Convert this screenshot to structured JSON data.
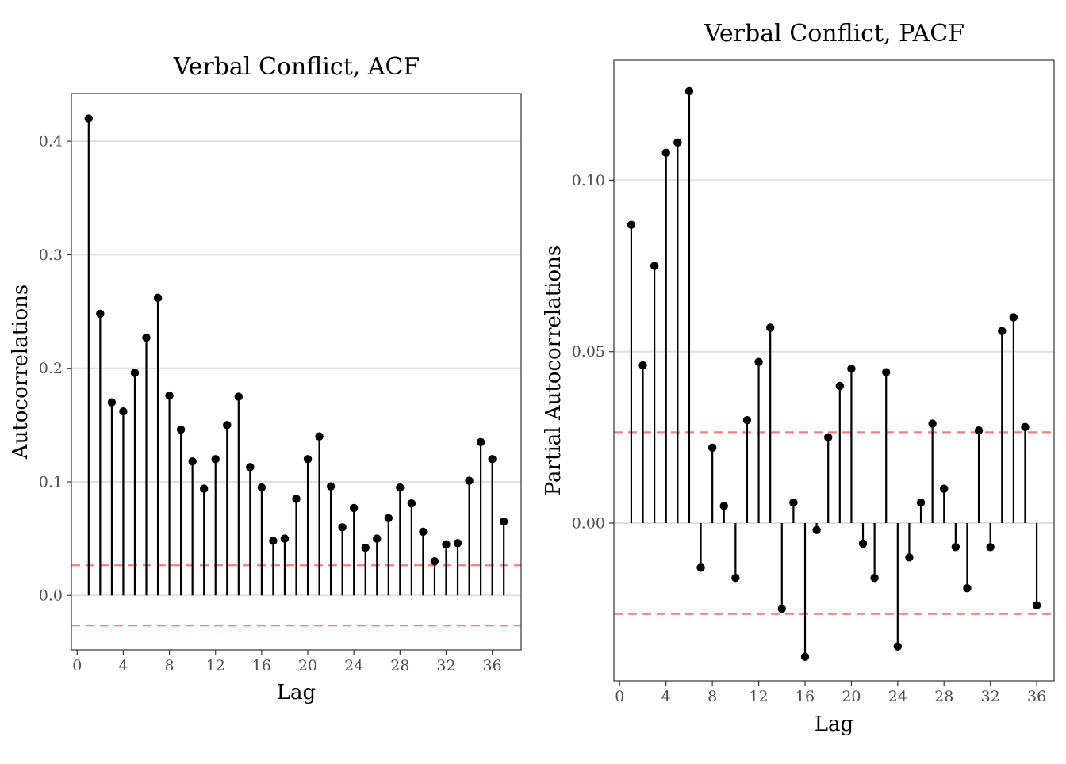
{
  "chart_data": [
    {
      "type": "stem",
      "title": "Verbal Conflict, ACF",
      "xlabel": "Lag",
      "ylabel": "Autocorrelations",
      "xlim": [
        -0.5,
        38.5
      ],
      "ylim": [
        -0.048,
        0.442
      ],
      "xticks": [
        0,
        4,
        8,
        12,
        16,
        20,
        24,
        28,
        32,
        36
      ],
      "yticks": [
        0.0,
        0.1,
        0.2,
        0.3,
        0.4
      ],
      "ytick_labels": [
        "0.0",
        "0.1",
        "0.2",
        "0.3",
        "0.4"
      ],
      "ci": [
        0.0265,
        -0.0265
      ],
      "grid": true,
      "colors": {
        "stem": "#000000",
        "ci": "#f08080",
        "grid": "#e0e0e0"
      },
      "x": [
        1,
        2,
        3,
        4,
        5,
        6,
        7,
        8,
        9,
        10,
        11,
        12,
        13,
        14,
        15,
        16,
        17,
        18,
        19,
        20,
        21,
        22,
        23,
        24,
        25,
        26,
        27,
        28,
        29,
        30,
        31,
        32,
        33,
        34,
        35,
        36,
        37
      ],
      "values": [
        0.42,
        0.248,
        0.17,
        0.162,
        0.196,
        0.227,
        0.262,
        0.176,
        0.146,
        0.118,
        0.094,
        0.12,
        0.15,
        0.175,
        0.113,
        0.095,
        0.048,
        0.05,
        0.085,
        0.12,
        0.14,
        0.096,
        0.06,
        0.077,
        0.042,
        0.05,
        0.068,
        0.095,
        0.081,
        0.056,
        0.03,
        0.045,
        0.046,
        0.101,
        0.135,
        0.12,
        0.065
      ]
    },
    {
      "type": "stem",
      "title": "Verbal Conflict, PACF",
      "xlabel": "Lag",
      "ylabel": "Partial Autocorrelations",
      "xlim": [
        -0.5,
        37.5
      ],
      "ylim": [
        -0.046,
        0.135
      ],
      "xticks": [
        0,
        4,
        8,
        12,
        16,
        20,
        24,
        28,
        32,
        36
      ],
      "yticks": [
        0.0,
        0.05,
        0.1
      ],
      "ytick_labels": [
        "0.00",
        "0.05",
        "0.10"
      ],
      "ci": [
        0.0265,
        -0.0265
      ],
      "grid": true,
      "colors": {
        "stem": "#000000",
        "ci": "#f08080",
        "grid": "#e0e0e0"
      },
      "x": [
        1,
        2,
        3,
        4,
        5,
        6,
        7,
        8,
        9,
        10,
        11,
        12,
        13,
        14,
        15,
        16,
        17,
        18,
        19,
        20,
        21,
        22,
        23,
        24,
        25,
        26,
        27,
        28,
        29,
        30,
        31,
        32,
        33,
        34,
        35,
        36
      ],
      "values": [
        0.087,
        0.046,
        0.075,
        0.108,
        0.111,
        0.126,
        -0.013,
        0.022,
        0.005,
        -0.016,
        0.03,
        0.047,
        0.057,
        -0.025,
        0.006,
        -0.039,
        -0.002,
        0.025,
        0.04,
        0.045,
        -0.006,
        -0.016,
        0.044,
        -0.036,
        -0.01,
        0.006,
        0.029,
        0.01,
        -0.007,
        -0.019,
        0.027,
        -0.007,
        0.056,
        0.06,
        0.028,
        -0.024
      ]
    }
  ]
}
